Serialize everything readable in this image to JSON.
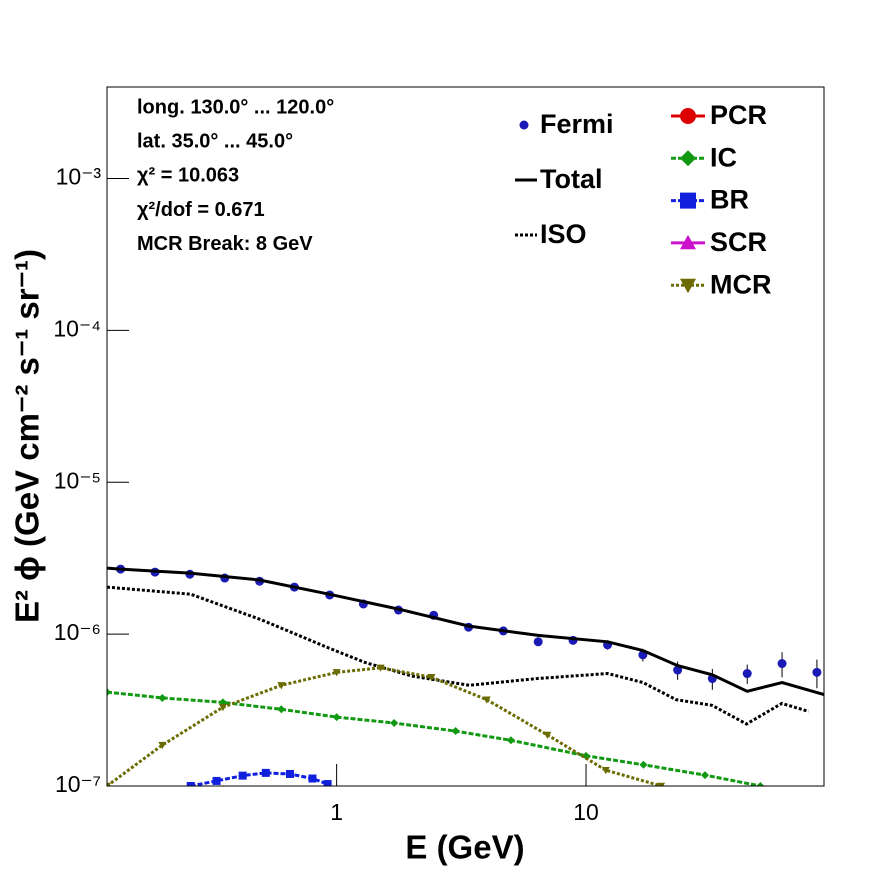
{
  "chart_data": {
    "type": "line",
    "x_label": "E (GeV)",
    "y_label": "E² ϕ (GeV cm⁻² s⁻¹ sr⁻¹)",
    "annotations": [
      "long. 130.0° ... 120.0°",
      "lat. 35.0° ... 45.0°",
      "χ² = 10.063",
      "χ²/dof = 0.671",
      "MCR Break:  8 GeV"
    ],
    "xlog": true,
    "ylog": true,
    "xlim": [
      0.12,
      90
    ],
    "ylim": [
      1e-07,
      0.004
    ],
    "xticks": [
      1,
      10
    ],
    "yticks": [
      {
        "value": 1e-07,
        "label": "10⁻⁷"
      },
      {
        "value": 1e-06,
        "label": "10⁻⁶"
      },
      {
        "value": 1e-05,
        "label": "10⁻⁵"
      },
      {
        "value": 0.0001,
        "label": "10⁻⁴"
      },
      {
        "value": 0.001,
        "label": "10⁻³"
      }
    ],
    "series": [
      {
        "name": "Fermi",
        "type": "scatter",
        "color": "#1a1ab5",
        "marker": "circle",
        "x": [
          0.136,
          0.187,
          0.258,
          0.356,
          0.491,
          0.677,
          0.938,
          1.28,
          1.77,
          2.45,
          3.38,
          4.66,
          6.43,
          8.87,
          12.2,
          16.9,
          23.3,
          32.1,
          44.3,
          61.1,
          84.3
        ],
        "values": [
          2.68e-06,
          2.56e-06,
          2.48e-06,
          2.34e-06,
          2.23e-06,
          2.04e-06,
          1.81e-06,
          1.58e-06,
          1.44e-06,
          1.33e-06,
          1.11e-06,
          1.05e-06,
          8.9e-07,
          9.1e-07,
          8.5e-07,
          7.3e-07,
          5.8e-07,
          5.1e-07,
          5.5e-07,
          6.4e-07,
          5.6e-07
        ],
        "errors": [
          3e-08,
          3e-08,
          3e-08,
          3e-08,
          3e-08,
          3e-08,
          3e-08,
          3e-08,
          3e-08,
          3e-08,
          3e-08,
          3e-08,
          3e-08,
          5e-08,
          6e-08,
          7e-08,
          8e-08,
          8e-08,
          8e-08,
          1.2e-07,
          1.2e-07
        ]
      },
      {
        "name": "Total",
        "type": "line",
        "color": "#000000",
        "style": "solid",
        "x": [
          0.12,
          0.136,
          0.258,
          0.491,
          0.933,
          1.77,
          3.38,
          6.43,
          12.2,
          16.9,
          23.3,
          32.1,
          44.3,
          61.1,
          90
        ],
        "values": [
          2.72e-06,
          2.68e-06,
          2.52e-06,
          2.27e-06,
          1.83e-06,
          1.46e-06,
          1.13e-06,
          9.8e-07,
          8.9e-07,
          7.8e-07,
          6.2e-07,
          5.4e-07,
          4.2e-07,
          4.8e-07,
          4e-07
        ]
      },
      {
        "name": "ISO",
        "type": "line",
        "color": "#000000",
        "style": "dotted",
        "x": [
          0.12,
          0.26,
          0.5,
          0.93,
          1.3,
          2.0,
          3.4,
          6.4,
          12.2,
          16.9,
          23,
          32,
          44,
          61,
          78
        ],
        "values": [
          2.04e-06,
          1.83e-06,
          1.24e-06,
          8.1e-07,
          6.5e-07,
          5.3e-07,
          4.6e-07,
          5.1e-07,
          5.5e-07,
          4.8e-07,
          3.7e-07,
          3.4e-07,
          2.56e-07,
          3.5e-07,
          3.1e-07
        ]
      },
      {
        "name": "PCR",
        "type": "line",
        "color": "#dd0000",
        "marker": "circle",
        "x": [],
        "values": []
      },
      {
        "name": "IC",
        "type": "line",
        "color": "#119911",
        "style": "dashed",
        "marker": "diamond",
        "x": [
          0.12,
          0.2,
          0.35,
          0.6,
          1,
          1.7,
          3,
          5,
          10,
          17,
          30,
          50
        ],
        "values": [
          4.15e-07,
          3.8e-07,
          3.55e-07,
          3.2e-07,
          2.84e-07,
          2.6e-07,
          2.3e-07,
          2e-07,
          1.58e-07,
          1.38e-07,
          1.18e-07,
          1e-07
        ]
      },
      {
        "name": "BR",
        "type": "line",
        "color": "#1020dd",
        "style": "dashed",
        "marker": "square",
        "x": [
          0.26,
          0.33,
          0.42,
          0.52,
          0.65,
          0.8,
          0.92
        ],
        "values": [
          1e-07,
          1.08e-07,
          1.17e-07,
          1.22e-07,
          1.2e-07,
          1.12e-07,
          1.03e-07
        ]
      },
      {
        "name": "SCR",
        "type": "line",
        "color": "#cc11cc",
        "marker": "triangle-up",
        "x": [],
        "values": []
      },
      {
        "name": "MCR",
        "type": "line",
        "color": "#6b6b00",
        "style": "dotted",
        "marker": "triangle-down",
        "x": [
          0.12,
          0.2,
          0.35,
          0.6,
          1.0,
          1.5,
          2.4,
          4,
          7,
          12,
          20
        ],
        "values": [
          1e-07,
          1.86e-07,
          3.3e-07,
          4.6e-07,
          5.6e-07,
          6e-07,
          5.2e-07,
          3.7e-07,
          2.17e-07,
          1.27e-07,
          1e-07
        ]
      }
    ]
  }
}
